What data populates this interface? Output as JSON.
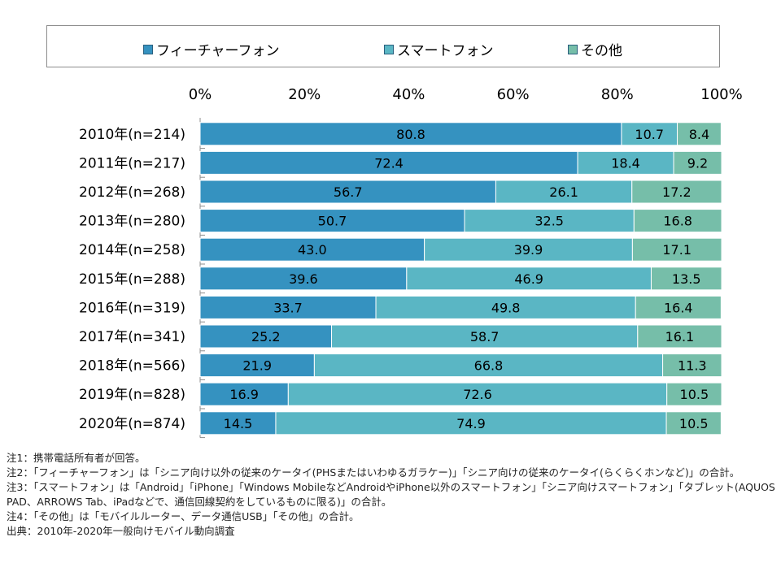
{
  "legend": {
    "items": [
      {
        "label": "フィーチャーフォン",
        "color": "#3592c0"
      },
      {
        "label": "スマートフォン",
        "color": "#5ab6c4"
      },
      {
        "label": "その他",
        "color": "#76bea9"
      }
    ]
  },
  "chart_data": {
    "type": "bar",
    "orientation": "horizontal",
    "stacked": true,
    "x_ticks": [
      "0%",
      "20%",
      "40%",
      "60%",
      "80%",
      "100%"
    ],
    "xlim": [
      0,
      100
    ],
    "categories": [
      "2010年(n=214)",
      "2011年(n=217)",
      "2012年(n=268)",
      "2013年(n=280)",
      "2014年(n=258)",
      "2015年(n=288)",
      "2016年(n=319)",
      "2017年(n=341)",
      "2018年(n=566)",
      "2019年(n=828)",
      "2020年(n=874)"
    ],
    "series": [
      {
        "name": "フィーチャーフォン",
        "color": "#3592c0",
        "values": [
          80.8,
          72.4,
          56.7,
          50.7,
          43.0,
          39.6,
          33.7,
          25.2,
          21.9,
          16.9,
          14.5
        ]
      },
      {
        "name": "スマートフォン",
        "color": "#5ab6c4",
        "values": [
          10.7,
          18.4,
          26.1,
          32.5,
          39.9,
          46.9,
          49.8,
          58.7,
          66.8,
          72.6,
          74.9
        ]
      },
      {
        "name": "その他",
        "color": "#76bea9",
        "values": [
          8.4,
          9.2,
          17.2,
          16.8,
          17.1,
          13.5,
          16.4,
          16.1,
          11.3,
          10.5,
          10.5
        ]
      }
    ],
    "legend_position": "top",
    "grid": false
  },
  "notes": [
    "注1：携帯電話所有者が回答。",
    "注2：「フィーチャーフォン」は「シニア向け以外の従来のケータイ(PHSまたはいわゆるガラケー)」「シニア向けの従来のケータイ(らくらくホンなど)」の合計。",
    "注3：「スマートフォン」は「Android」「iPhone」「Windows MobileなどAndroidやiPhone以外のスマートフォン」「シニア向けスマートフォン」「タブレット(AQUOS PAD、ARROWS Tab、iPadなどで、通信回線契約をしているものに限る)」の合計。",
    "注4：「その他」は「モバイルルーター、データ通信USB」「その他」の合計。",
    "出典：2010年-2020年一般向けモバイル動向調査"
  ]
}
